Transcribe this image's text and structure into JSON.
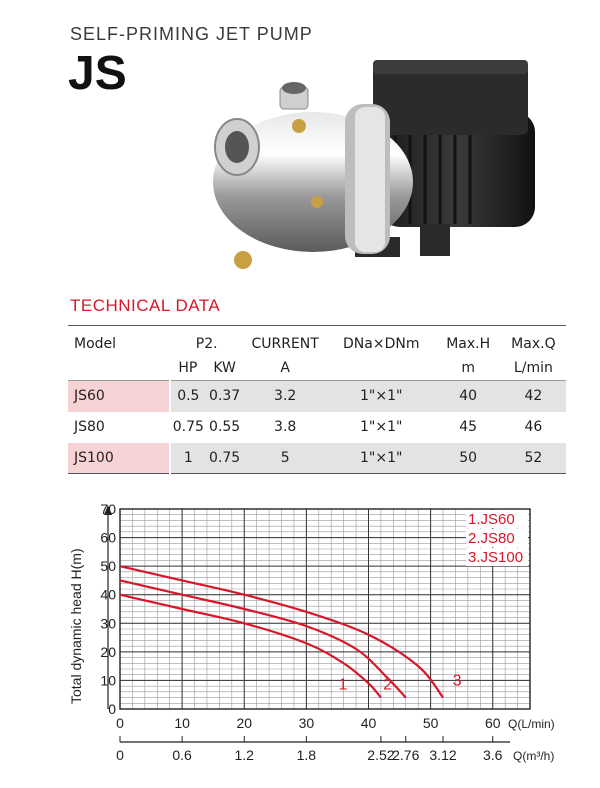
{
  "header": {
    "subtitle": "SELF-PRIMING JET PUMP",
    "title": "JS"
  },
  "product_image": {
    "icon": "stainless-jet-pump-photo"
  },
  "technical": {
    "title": "TECHNICAL DATA",
    "headers": {
      "model": "Model",
      "p2": "P2.",
      "hp": "HP",
      "kw": "KW",
      "current": "CURRENT",
      "current_unit": "A",
      "dn": "DNa×DNm",
      "maxh": "Max.H",
      "maxh_unit": "m",
      "maxq": "Max.Q",
      "maxq_unit": "L/min"
    },
    "rows": [
      {
        "model": "JS60",
        "hp": "0.5",
        "kw": "0.37",
        "current": "3.2",
        "dn": "1\"×1\"",
        "maxh": "40",
        "maxq": "42"
      },
      {
        "model": "JS80",
        "hp": "0.75",
        "kw": "0.55",
        "current": "3.8",
        "dn": "1\"×1\"",
        "maxh": "45",
        "maxq": "46"
      },
      {
        "model": "JS100",
        "hp": "1",
        "kw": "0.75",
        "current": "5",
        "dn": "1\"×1\"",
        "maxh": "50",
        "maxq": "52"
      }
    ]
  },
  "colors": {
    "accent": "#d7182a",
    "shade": "#e3e3e3",
    "model_shade": "#f8d3d6",
    "grid": "#555555"
  },
  "chart_data": {
    "type": "line",
    "ylabel": "Total dynamic head H(m)",
    "xlabel": "Q(L/min)",
    "xlabel2": "Q(m³/h)",
    "xlim": [
      0,
      66
    ],
    "ylim": [
      0,
      70
    ],
    "yticks": [
      "0",
      "10",
      "20",
      "30",
      "40",
      "50",
      "60",
      "70"
    ],
    "yticks_values": [
      0,
      10,
      20,
      30,
      40,
      50,
      60,
      70
    ],
    "xticks": [
      "0",
      "10",
      "20",
      "30",
      "40",
      "50",
      "60"
    ],
    "xticks_values": [
      0,
      10,
      20,
      30,
      40,
      50,
      60
    ],
    "xticks2": [
      "0",
      "0.6",
      "1.2",
      "1.8",
      "2.52",
      "2.76",
      "3.12",
      "3.6"
    ],
    "xticks2_values": [
      0,
      10,
      20,
      30,
      42,
      46,
      52,
      60
    ],
    "grid": true,
    "legend": [
      "1.JS60",
      "2.JS80",
      "3.JS100"
    ],
    "legend_position": "top-right",
    "series": [
      {
        "name": "1",
        "x": [
          0,
          10,
          20,
          30,
          36,
          40,
          42
        ],
        "y": [
          40,
          35,
          30,
          23,
          16,
          9,
          4
        ]
      },
      {
        "name": "2",
        "x": [
          0,
          10,
          20,
          30,
          38,
          43,
          46
        ],
        "y": [
          45,
          40,
          35,
          29,
          21,
          11,
          4
        ]
      },
      {
        "name": "3",
        "x": [
          0,
          10,
          20,
          30,
          40,
          48,
          52
        ],
        "y": [
          50,
          45,
          40,
          34,
          26,
          15,
          4
        ]
      }
    ]
  }
}
